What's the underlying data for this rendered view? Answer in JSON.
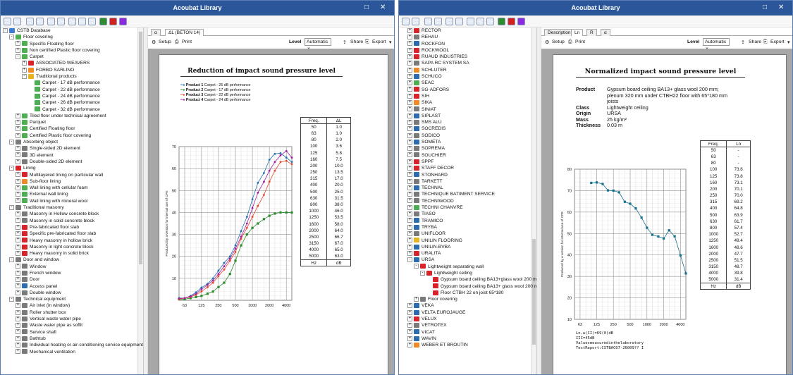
{
  "colors": {
    "titlebar": "#2b579a",
    "p1": "#1f6fb0",
    "p2": "#2e8b2e",
    "p3": "#e8472a",
    "p4": "#a020a0"
  },
  "winA": {
    "title": "Acoubat Library",
    "tabs": [
      "α",
      "ΔL (BETON 14)"
    ],
    "setup": "Setup",
    "print": "Print",
    "level_label": "Level",
    "level_value": "Automatic",
    "share": "Share",
    "export": "Export",
    "tree": [
      {
        "d": 0,
        "pm": "-",
        "ic": "db",
        "t": "CSTB Database"
      },
      {
        "d": 1,
        "pm": "-",
        "ic": "g",
        "t": "Floor covering"
      },
      {
        "d": 2,
        "pm": "+",
        "ic": "g",
        "t": "Specific Floating floor"
      },
      {
        "d": 2,
        "pm": "+",
        "ic": "g",
        "t": "Non certified Plastic floor covering"
      },
      {
        "d": 2,
        "pm": "-",
        "ic": "g",
        "t": "Carpet"
      },
      {
        "d": 3,
        "pm": "+",
        "ic": "r",
        "t": "ASSOCIATED WEAVERS"
      },
      {
        "d": 3,
        "pm": "+",
        "ic": "o",
        "t": "FORBO SARLINO"
      },
      {
        "d": 3,
        "pm": "-",
        "ic": "y",
        "t": "Traditional products"
      },
      {
        "d": 4,
        "pm": "",
        "ic": "g",
        "t": "Carpet - 17 dB performance"
      },
      {
        "d": 4,
        "pm": "",
        "ic": "g",
        "t": "Carpet - 22 dB performance"
      },
      {
        "d": 4,
        "pm": "",
        "ic": "g",
        "t": "Carpet - 24 dB performance"
      },
      {
        "d": 4,
        "pm": "",
        "ic": "g",
        "t": "Carpet - 26 dB performance"
      },
      {
        "d": 4,
        "pm": "",
        "ic": "g",
        "t": "Carpet - 32 dB performance"
      },
      {
        "d": 2,
        "pm": "+",
        "ic": "g",
        "t": "Tiled floor under technical agreement"
      },
      {
        "d": 2,
        "pm": "+",
        "ic": "g",
        "t": "Parquet"
      },
      {
        "d": 2,
        "pm": "+",
        "ic": "g",
        "t": "Certified Floating floor"
      },
      {
        "d": 2,
        "pm": "+",
        "ic": "g",
        "t": "Certified Plastic floor covering"
      },
      {
        "d": 1,
        "pm": "-",
        "ic": "k",
        "t": "Absorbing object"
      },
      {
        "d": 2,
        "pm": "+",
        "ic": "k",
        "t": "Single-sided 2D element"
      },
      {
        "d": 2,
        "pm": "+",
        "ic": "k",
        "t": "3D element"
      },
      {
        "d": 2,
        "pm": "+",
        "ic": "k",
        "t": "Double-sided 2D element"
      },
      {
        "d": 1,
        "pm": "-",
        "ic": "r",
        "t": "Lining"
      },
      {
        "d": 2,
        "pm": "+",
        "ic": "r",
        "t": "Multilayered lining on particular wall"
      },
      {
        "d": 2,
        "pm": "+",
        "ic": "o",
        "t": "Sub-floor lining"
      },
      {
        "d": 2,
        "pm": "+",
        "ic": "g",
        "t": "Wall lining with cellular foam"
      },
      {
        "d": 2,
        "pm": "+",
        "ic": "g",
        "t": "External wall lining"
      },
      {
        "d": 2,
        "pm": "+",
        "ic": "g",
        "t": "Wall lining with mineral wool"
      },
      {
        "d": 1,
        "pm": "-",
        "ic": "k",
        "t": "Traditional masonry"
      },
      {
        "d": 2,
        "pm": "+",
        "ic": "k",
        "t": "Masonry in Hollow concrete block"
      },
      {
        "d": 2,
        "pm": "+",
        "ic": "k",
        "t": "Masonry in solid concrete block"
      },
      {
        "d": 2,
        "pm": "+",
        "ic": "r",
        "t": "Pre-fabricated floor slab"
      },
      {
        "d": 2,
        "pm": "+",
        "ic": "r",
        "t": "Specific pre-fabricated floor slab"
      },
      {
        "d": 2,
        "pm": "+",
        "ic": "r",
        "t": "Heavy masonry in hollow brick"
      },
      {
        "d": 2,
        "pm": "+",
        "ic": "r",
        "t": "Masonry in light concrete block"
      },
      {
        "d": 2,
        "pm": "+",
        "ic": "r",
        "t": "Heavy masonry in solid brick"
      },
      {
        "d": 1,
        "pm": "-",
        "ic": "k",
        "t": "Door and window"
      },
      {
        "d": 2,
        "pm": "+",
        "ic": "k",
        "t": "Window"
      },
      {
        "d": 2,
        "pm": "+",
        "ic": "k",
        "t": "French window"
      },
      {
        "d": 2,
        "pm": "+",
        "ic": "k",
        "t": "Door"
      },
      {
        "d": 2,
        "pm": "+",
        "ic": "b",
        "t": "Access panel"
      },
      {
        "d": 2,
        "pm": "+",
        "ic": "k",
        "t": "Double window"
      },
      {
        "d": 1,
        "pm": "-",
        "ic": "k",
        "t": "Technical equipment"
      },
      {
        "d": 2,
        "pm": "+",
        "ic": "k",
        "t": "Air inlet (in window)"
      },
      {
        "d": 2,
        "pm": "+",
        "ic": "k",
        "t": "Roller shutter box"
      },
      {
        "d": 2,
        "pm": "+",
        "ic": "k",
        "t": "Vertical waste water pipe"
      },
      {
        "d": 2,
        "pm": "+",
        "ic": "k",
        "t": "Waste water pipe as soffit"
      },
      {
        "d": 2,
        "pm": "+",
        "ic": "k",
        "t": "Service shaft"
      },
      {
        "d": 2,
        "pm": "+",
        "ic": "k",
        "t": "Bathtub"
      },
      {
        "d": 2,
        "pm": "+",
        "ic": "k",
        "t": "Individual heating or air-conditioning service equipment"
      },
      {
        "d": 2,
        "pm": "+",
        "ic": "k",
        "t": "Mechanical ventilation"
      }
    ],
    "report_title": "Reduction of impact sound pressure level",
    "legend": [
      {
        "p": "Product 1",
        "d": "Carpet - 26 dB performance"
      },
      {
        "p": "Product 2",
        "d": "Carpet - 17 dB performance"
      },
      {
        "p": "Product 3",
        "d": "Carpet - 22 dB performance"
      },
      {
        "p": "Product 4",
        "d": "Carpet - 24 dB performance"
      }
    ],
    "ylabel": "Produced by a version for internal use of CPE",
    "table_head": [
      "Freq.",
      "ΔL"
    ],
    "table_rows": [
      [
        "50",
        "1.0"
      ],
      [
        "63",
        "1.0"
      ],
      [
        "80",
        "2.0"
      ],
      [
        "100",
        "3.6"
      ],
      [
        "125",
        "5.8"
      ],
      [
        "160",
        "7.5"
      ],
      [
        "200",
        "10.0"
      ],
      [
        "250",
        "13.5"
      ],
      [
        "315",
        "17.0"
      ],
      [
        "400",
        "20.0"
      ],
      [
        "500",
        "25.0"
      ],
      [
        "630",
        "31.5"
      ],
      [
        "800",
        "38.0"
      ],
      [
        "1000",
        "46.0"
      ],
      [
        "1250",
        "53.5"
      ],
      [
        "1600",
        "58.0"
      ],
      [
        "2000",
        "64.0"
      ],
      [
        "2500",
        "66.7"
      ],
      [
        "3150",
        "67.0"
      ],
      [
        "4000",
        "65.0"
      ],
      [
        "5000",
        "63.0"
      ]
    ],
    "table_foot": [
      "Hz",
      "dB"
    ]
  },
  "winB": {
    "title": "Acoubat Library",
    "tabs": [
      "Description",
      "Ln",
      "R",
      "α"
    ],
    "setup": "Setup",
    "print": "Print",
    "level_label": "Level",
    "level_value": "Automatic",
    "share": "Share",
    "export": "Export",
    "tree": [
      {
        "d": 1,
        "pm": "+",
        "ic": "r",
        "t": "RECTOR"
      },
      {
        "d": 1,
        "pm": "+",
        "ic": "k",
        "t": "REHAU"
      },
      {
        "d": 1,
        "pm": "+",
        "ic": "b",
        "t": "ROCKFON"
      },
      {
        "d": 1,
        "pm": "+",
        "ic": "r",
        "t": "ROCKWOOL"
      },
      {
        "d": 1,
        "pm": "+",
        "ic": "r",
        "t": "RUAUD INDUSTRIES"
      },
      {
        "d": 1,
        "pm": "+",
        "ic": "k",
        "t": "SAPA RC SYSTEM SA"
      },
      {
        "d": 1,
        "pm": "+",
        "ic": "o",
        "t": "SCHLUTER"
      },
      {
        "d": 1,
        "pm": "+",
        "ic": "b",
        "t": "SCHUCO"
      },
      {
        "d": 1,
        "pm": "+",
        "ic": "g",
        "t": "SEAC"
      },
      {
        "d": 1,
        "pm": "+",
        "ic": "r",
        "t": "SG-ADFORS"
      },
      {
        "d": 1,
        "pm": "+",
        "ic": "r",
        "t": "SIH"
      },
      {
        "d": 1,
        "pm": "+",
        "ic": "o",
        "t": "SIKA"
      },
      {
        "d": 1,
        "pm": "+",
        "ic": "k",
        "t": "SINIAT"
      },
      {
        "d": 1,
        "pm": "+",
        "ic": "b",
        "t": "SIPLAST"
      },
      {
        "d": 1,
        "pm": "+",
        "ic": "k",
        "t": "SMS ALU"
      },
      {
        "d": 1,
        "pm": "+",
        "ic": "b",
        "t": "SOCREDIS"
      },
      {
        "d": 1,
        "pm": "+",
        "ic": "k",
        "t": "SODICO"
      },
      {
        "d": 1,
        "pm": "+",
        "ic": "b",
        "t": "SOMETA"
      },
      {
        "d": 1,
        "pm": "+",
        "ic": "k",
        "t": "SOPREMA"
      },
      {
        "d": 1,
        "pm": "+",
        "ic": "k",
        "t": "SOUCHIER"
      },
      {
        "d": 1,
        "pm": "+",
        "ic": "r",
        "t": "SPPF"
      },
      {
        "d": 1,
        "pm": "+",
        "ic": "r",
        "t": "STAFF DECOR"
      },
      {
        "d": 1,
        "pm": "+",
        "ic": "b",
        "t": "STONHARD"
      },
      {
        "d": 1,
        "pm": "+",
        "ic": "k",
        "t": "TARKETT"
      },
      {
        "d": 1,
        "pm": "+",
        "ic": "b",
        "t": "TECHNAL"
      },
      {
        "d": 1,
        "pm": "+",
        "ic": "k",
        "t": "TECHNIQUE BATIMENT SERVICE"
      },
      {
        "d": 1,
        "pm": "+",
        "ic": "k",
        "t": "TECHNIWOOD"
      },
      {
        "d": 1,
        "pm": "+",
        "ic": "g",
        "t": "TECHNI CHANVRE"
      },
      {
        "d": 1,
        "pm": "+",
        "ic": "k",
        "t": "TIASO"
      },
      {
        "d": 1,
        "pm": "+",
        "ic": "b",
        "t": "TRAMICO"
      },
      {
        "d": 1,
        "pm": "+",
        "ic": "b",
        "t": "TRYBA"
      },
      {
        "d": 1,
        "pm": "+",
        "ic": "k",
        "t": "UNIFLOOR"
      },
      {
        "d": 1,
        "pm": "+",
        "ic": "y",
        "t": "UNILIN FLOORING"
      },
      {
        "d": 1,
        "pm": "+",
        "ic": "b",
        "t": "UNILIN-BVBA"
      },
      {
        "d": 1,
        "pm": "+",
        "ic": "r",
        "t": "URALITA"
      },
      {
        "d": 1,
        "pm": "-",
        "ic": "b",
        "t": "URSA"
      },
      {
        "d": 2,
        "pm": "-",
        "ic": "r",
        "t": "Lightweight separating wall"
      },
      {
        "d": 3,
        "pm": "-",
        "ic": "r",
        "t": "Lightweight ceiling"
      },
      {
        "d": 4,
        "pm": "",
        "ic": "r",
        "t": "Gypsum board ceiling BA13+glass wool 200 mm"
      },
      {
        "d": 4,
        "pm": "",
        "ic": "r",
        "t": "Gypsum board ceiling BA13+ glass wool 200 mm"
      },
      {
        "d": 4,
        "pm": "",
        "ic": "r",
        "t": "Floor CTBH 22 on joist 65*180"
      },
      {
        "d": 2,
        "pm": "+",
        "ic": "k",
        "t": "Floor covering"
      },
      {
        "d": 1,
        "pm": "+",
        "ic": "b",
        "t": "VEKA"
      },
      {
        "d": 1,
        "pm": "+",
        "ic": "b",
        "t": "VELTA EUROJAUGE"
      },
      {
        "d": 1,
        "pm": "+",
        "ic": "r",
        "t": "VELUX"
      },
      {
        "d": 1,
        "pm": "+",
        "ic": "k",
        "t": "VETROTEX"
      },
      {
        "d": 1,
        "pm": "+",
        "ic": "b",
        "t": "VICAT"
      },
      {
        "d": 1,
        "pm": "+",
        "ic": "b",
        "t": "WAVIN"
      },
      {
        "d": 1,
        "pm": "+",
        "ic": "o",
        "t": "WEBER ET BROUTIN"
      }
    ],
    "report_title": "Normalized impact sound pressure level",
    "info": [
      {
        "k": "Product",
        "v": "Gypsum board ceiling BA13+ glass wool 200 mm;"
      },
      {
        "k": "",
        "v": "plenum 320 mm under CTBH22 floor with 65*180 mm"
      },
      {
        "k": "",
        "v": "joists"
      },
      {
        "k": "Class",
        "v": "Lightweight ceiling"
      },
      {
        "k": "Origin",
        "v": "URSA"
      },
      {
        "k": "Mass",
        "v": "25 kg/m²"
      },
      {
        "k": "Thickness",
        "v": "0.03 m"
      }
    ],
    "ylabel": "Produced by a version for internal use of CPE",
    "table_head": [
      "Freq.",
      "Ln"
    ],
    "table_rows": [
      [
        "50",
        "-"
      ],
      [
        "63",
        "-"
      ],
      [
        "80",
        "-"
      ],
      [
        "100",
        "73.6"
      ],
      [
        "125",
        "73.8"
      ],
      [
        "160",
        "73.1"
      ],
      [
        "200",
        "70.1"
      ],
      [
        "250",
        "70.0"
      ],
      [
        "315",
        "69.2"
      ],
      [
        "400",
        "64.8"
      ],
      [
        "500",
        "63.9"
      ],
      [
        "630",
        "61.7"
      ],
      [
        "800",
        "57.4"
      ],
      [
        "1000",
        "52.7"
      ],
      [
        "1250",
        "49.4"
      ],
      [
        "1600",
        "48.6"
      ],
      [
        "2000",
        "47.7"
      ],
      [
        "2500",
        "51.5"
      ],
      [
        "3150",
        "48.7"
      ],
      [
        "4000",
        "39.8"
      ],
      [
        "5000",
        "31.4"
      ]
    ],
    "table_foot": [
      "Hz",
      "dB"
    ],
    "notes": [
      "Ln,w(CI)=69(0)dB",
      "IIC=45dB",
      "",
      "Valuesmeasuredinthelaboratory",
      "TestReport:CSTBAC07-26009?? I"
    ]
  },
  "chart_data": [
    {
      "type": "line",
      "title": "Reduction of impact sound pressure level",
      "ylabel": "",
      "x": [
        50,
        63,
        80,
        100,
        125,
        160,
        200,
        250,
        315,
        400,
        500,
        630,
        800,
        1000,
        1250,
        1600,
        2000,
        2500,
        3150,
        4000,
        5000
      ],
      "x_ticks": [
        "63",
        "125",
        "250",
        "500",
        "1000",
        "2000",
        "4000"
      ],
      "ylim": [
        0,
        70
      ],
      "y_ticks": [
        10,
        20,
        30,
        40,
        50,
        60,
        70
      ],
      "x_scale": "log",
      "grid": true,
      "series": [
        {
          "name": "Product 1",
          "values": [
            1.0,
            1.0,
            2.0,
            3.6,
            5.8,
            7.5,
            10.0,
            13.5,
            17.0,
            20.0,
            25.0,
            31.5,
            38.0,
            46.0,
            53.5,
            58.0,
            64.0,
            66.7,
            67.0,
            65.0,
            63.0
          ]
        },
        {
          "name": "Product 2",
          "values": [
            0.5,
            0.5,
            1.0,
            1.5,
            2.0,
            3.0,
            4.0,
            6.0,
            8.0,
            12.0,
            18.0,
            25.0,
            30.0,
            33.0,
            35.0,
            37.0,
            38.5,
            39.5,
            40.0,
            40.0,
            40.0
          ]
        },
        {
          "name": "Product 3",
          "values": [
            0.5,
            1.0,
            1.5,
            2.5,
            4.0,
            6.0,
            8.0,
            11.0,
            14.0,
            18.0,
            22.0,
            28.0,
            33.0,
            38.0,
            43.0,
            48.0,
            54.0,
            59.0,
            63.0,
            63.5,
            62.0
          ]
        },
        {
          "name": "Product 4",
          "values": [
            0.8,
            1.0,
            1.8,
            3.0,
            5.0,
            7.0,
            9.0,
            12.0,
            15.5,
            19.0,
            23.5,
            29.0,
            35.0,
            42.0,
            49.0,
            54.0,
            59.0,
            63.0,
            66.0,
            68.0,
            65.0
          ]
        }
      ]
    },
    {
      "type": "line",
      "title": "Normalized impact sound pressure level",
      "ylabel": "",
      "x": [
        100,
        125,
        160,
        200,
        250,
        315,
        400,
        500,
        630,
        800,
        1000,
        1250,
        1600,
        2000,
        2500,
        3150,
        4000,
        5000
      ],
      "x_ticks": [
        "63",
        "125",
        "250",
        "500",
        "1000",
        "2000",
        "4000"
      ],
      "ylim": [
        10,
        80
      ],
      "y_ticks": [
        10,
        20,
        30,
        40,
        50,
        60,
        70,
        80
      ],
      "x_scale": "log",
      "grid": true,
      "series": [
        {
          "name": "Ln",
          "values": [
            73.6,
            73.8,
            73.1,
            70.1,
            70.0,
            69.2,
            64.8,
            63.9,
            61.7,
            57.4,
            52.7,
            49.4,
            48.6,
            47.7,
            51.5,
            48.7,
            39.8,
            31.4
          ]
        }
      ]
    }
  ]
}
